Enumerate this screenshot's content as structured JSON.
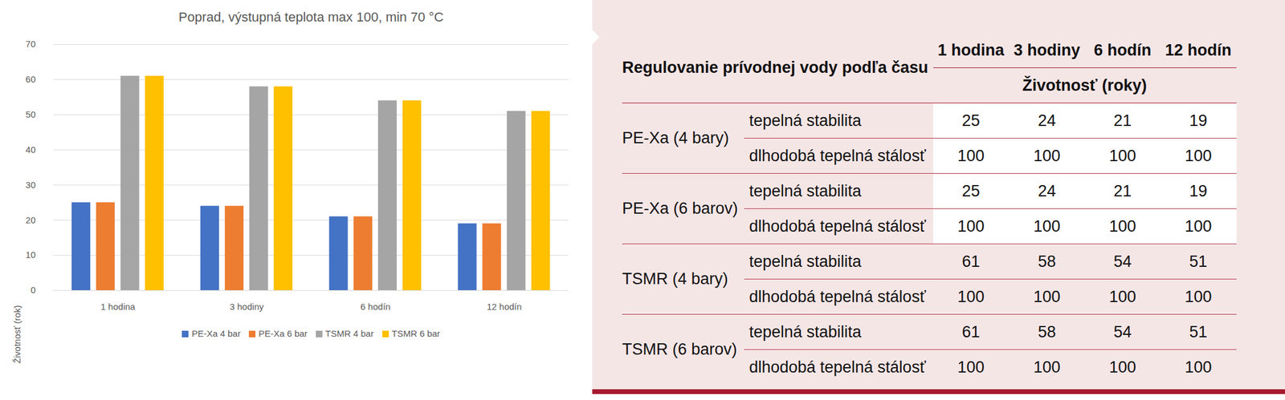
{
  "chart_data": {
    "type": "bar",
    "title": "Poprad, výstupná teplota max 100, min 70 °C",
    "y_label": "Životnosť (rok)",
    "categories": [
      "1 hodina",
      "3 hodiny",
      "6 hodín",
      "12 hodín"
    ],
    "series": [
      {
        "name": "PE-Xa 4 bar",
        "color": "#4472c4",
        "values": [
          25,
          24,
          21,
          19
        ]
      },
      {
        "name": "PE-Xa 6 bar",
        "color": "#ed7d31",
        "values": [
          25,
          24,
          21,
          19
        ]
      },
      {
        "name": "TSMR 4 bar",
        "color": "#a5a5a5",
        "values": [
          61,
          58,
          54,
          51
        ]
      },
      {
        "name": "TSMR 6 bar",
        "color": "#ffc000",
        "values": [
          61,
          58,
          54,
          51
        ]
      }
    ],
    "ylim": [
      0,
      70
    ],
    "yticks": [
      0,
      10,
      20,
      30,
      40,
      50,
      60,
      70
    ],
    "grid": true,
    "legend": "bottom"
  },
  "table": {
    "title": "Regulovanie prívodnej vody podľa času",
    "columns": [
      "1 hodina",
      "3 hodiny",
      "6 hodín",
      "12 hodín"
    ],
    "subheader": "Životnosť (roky)",
    "groups": [
      {
        "name": "PE-Xa (4 bary)",
        "rows": [
          {
            "label": "tepelná stabilita",
            "values": [
              25,
              24,
              21,
              19
            ]
          },
          {
            "label": "dlhodobá tepelná stálosť",
            "values": [
              100,
              100,
              100,
              100
            ]
          }
        ]
      },
      {
        "name": "PE-Xa (6 barov)",
        "rows": [
          {
            "label": "tepelná stabilita",
            "values": [
              25,
              24,
              21,
              19
            ]
          },
          {
            "label": "dlhodobá tepelná stálosť",
            "values": [
              100,
              100,
              100,
              100
            ]
          }
        ]
      },
      {
        "name": "TSMR (4 bary)",
        "rows": [
          {
            "label": "tepelná stabilita",
            "values": [
              61,
              58,
              54,
              51
            ]
          },
          {
            "label": "dlhodobá tepelná stálosť",
            "values": [
              100,
              100,
              100,
              100
            ]
          }
        ]
      },
      {
        "name": "TSMR (6 barov)",
        "rows": [
          {
            "label": "tepelná stabilita",
            "values": [
              61,
              58,
              54,
              51
            ]
          },
          {
            "label": "dlhodobá tepelná stálosť",
            "values": [
              100,
              100,
              100,
              100
            ]
          }
        ]
      }
    ]
  }
}
